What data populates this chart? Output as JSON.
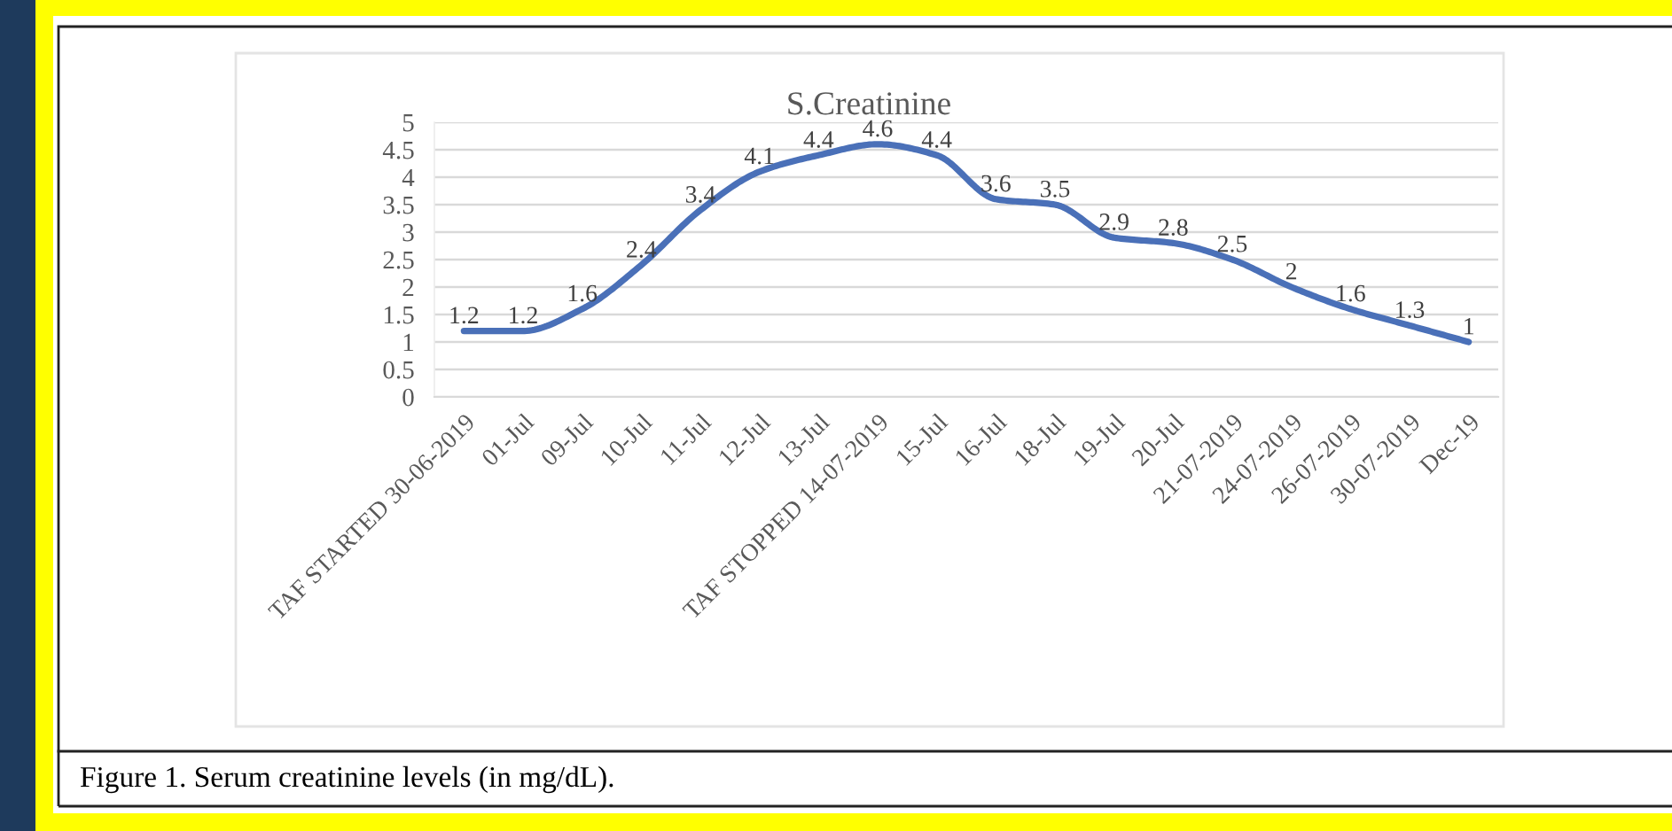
{
  "chart_data": {
    "type": "line",
    "title": "S.Creatinine",
    "categories": [
      "TAF STARTED 30-06-2019",
      "01-Jul",
      "09-Jul",
      "10-Jul",
      "11-Jul",
      "12-Jul",
      "13-Jul",
      "TAF STOPPED 14-07-2019",
      "15-Jul",
      "16-Jul",
      "18-Jul",
      "19-Jul",
      "20-Jul",
      "21-07-2019",
      "24-07-2019",
      "26-07-2019",
      "30-07-2019",
      "Dec-19"
    ],
    "series": [
      {
        "color": "#4a70b8",
        "values": [
          1.2,
          1.2,
          1.6,
          2.4,
          3.4,
          4.1,
          4.4,
          4.6,
          4.4,
          3.6,
          3.5,
          2.9,
          2.8,
          2.5,
          2,
          1.6,
          1.3,
          1
        ]
      }
    ],
    "ylim": [
      0,
      5
    ],
    "yticks": [
      0,
      0.5,
      1,
      1.5,
      2,
      2.5,
      3,
      3.5,
      4,
      4.5,
      5
    ],
    "grid": "y",
    "data_labels": true,
    "line_style": "solid",
    "annotations": [
      "Figure 1. Serum creatinine levels (in mg/dL)."
    ]
  }
}
